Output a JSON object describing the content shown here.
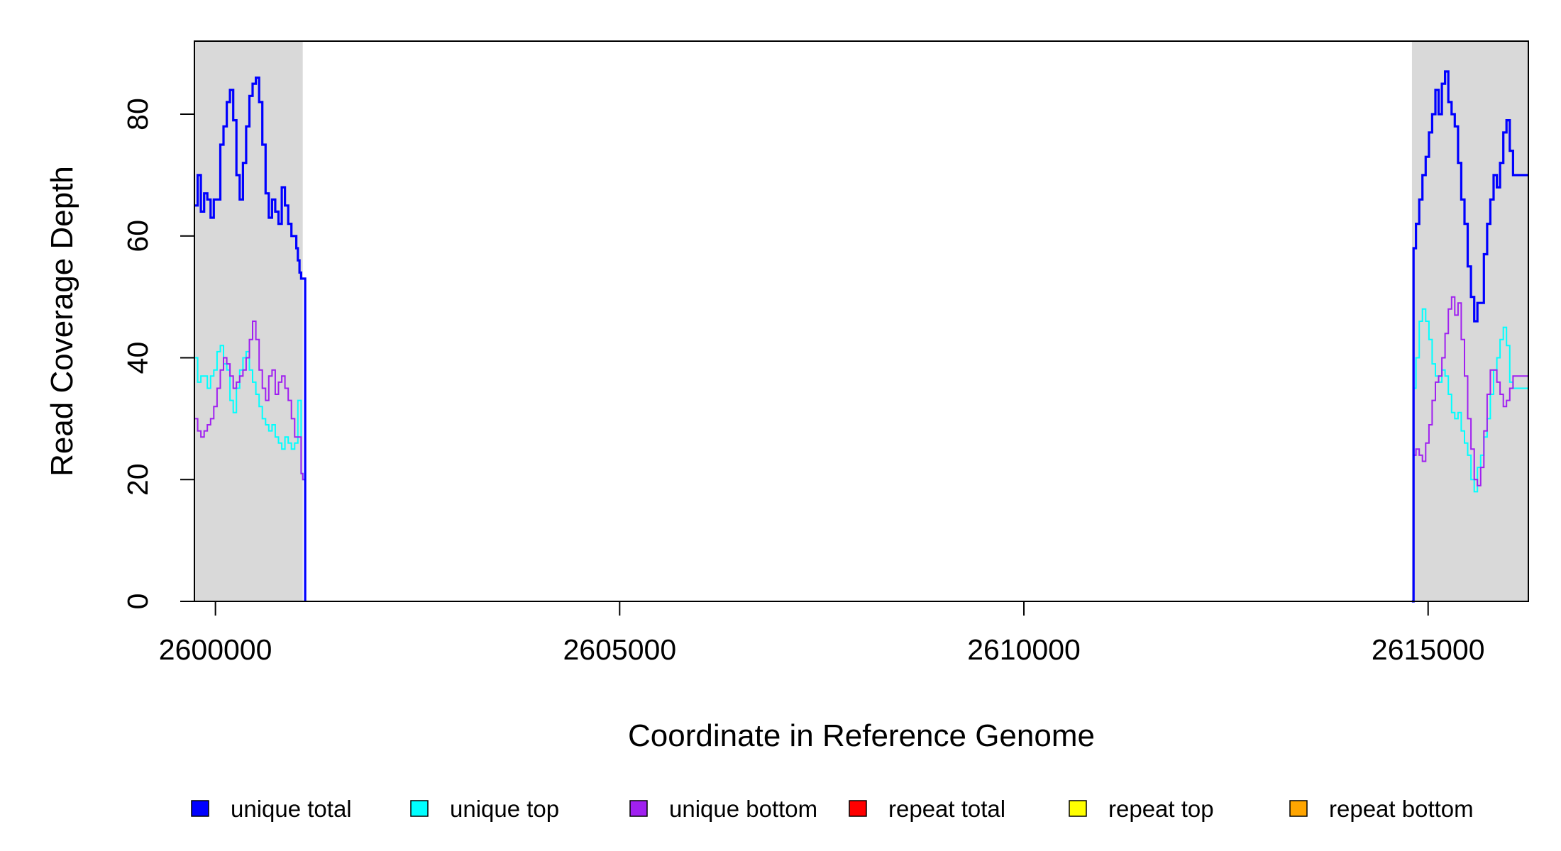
{
  "chart_data": {
    "type": "line",
    "title": "",
    "xlabel": "Coordinate in Reference Genome",
    "ylabel": "Read Coverage Depth",
    "xlim": [
      2599740,
      2616240
    ],
    "ylim": [
      0,
      92
    ],
    "x_ticks": [
      2600000,
      2605000,
      2610000,
      2615000
    ],
    "x_tick_labels": [
      "2600000",
      "2605000",
      "2610000",
      "2615000"
    ],
    "y_ticks": [
      0,
      20,
      40,
      60,
      80
    ],
    "y_tick_labels": [
      "0",
      "20",
      "40",
      "60",
      "80"
    ],
    "shaded_regions": [
      [
        2599740,
        2601080
      ],
      [
        2614800,
        2616240
      ]
    ],
    "shade_color": "#d9d9d9",
    "grid": false,
    "legend_position": "bottom",
    "series": [
      {
        "name": "unique total",
        "color": "#0000ff",
        "segments": [
          {
            "x": [
              2599740,
              2599780,
              2599820,
              2599860,
              2599900,
              2599940,
              2599980,
              2600020,
              2600060,
              2600100,
              2600140,
              2600180,
              2600220,
              2600260,
              2600300,
              2600340,
              2600380,
              2600420,
              2600460,
              2600500,
              2600540,
              2600580,
              2600620,
              2600660,
              2600700,
              2600740,
              2600780,
              2600820,
              2600860,
              2600900,
              2600940,
              2600980,
              2601000,
              2601020,
              2601040,
              2601060,
              2601080,
              2601110
            ],
            "y": [
              65,
              70,
              64,
              67,
              66,
              63,
              66,
              66,
              75,
              78,
              82,
              84,
              79,
              70,
              66,
              72,
              78,
              83,
              85,
              86,
              82,
              75,
              67,
              63,
              66,
              64,
              62,
              68,
              65,
              62,
              60,
              60,
              58,
              56,
              54,
              53,
              53,
              0
            ]
          },
          {
            "x": [
              2614800,
              2614820,
              2614850,
              2614890,
              2614930,
              2614970,
              2615010,
              2615050,
              2615090,
              2615130,
              2615170,
              2615210,
              2615250,
              2615290,
              2615330,
              2615370,
              2615410,
              2615450,
              2615490,
              2615530,
              2615570,
              2615610,
              2615650,
              2615690,
              2615730,
              2615770,
              2615810,
              2615850,
              2615890,
              2615930,
              2615970,
              2616010,
              2616050,
              2616090,
              2616130,
              2616170,
              2616210,
              2616240
            ],
            "y": [
              0,
              58,
              62,
              66,
              70,
              73,
              77,
              80,
              84,
              80,
              85,
              87,
              82,
              80,
              78,
              72,
              66,
              62,
              55,
              50,
              46,
              49,
              49,
              57,
              62,
              66,
              70,
              68,
              72,
              77,
              79,
              74,
              70,
              70,
              70,
              70,
              70,
              70
            ]
          }
        ]
      },
      {
        "name": "unique top",
        "color": "#00ffff",
        "segments": [
          {
            "x": [
              2599740,
              2599780,
              2599820,
              2599860,
              2599900,
              2599940,
              2599980,
              2600020,
              2600060,
              2600100,
              2600140,
              2600180,
              2600220,
              2600260,
              2600300,
              2600340,
              2600380,
              2600420,
              2600460,
              2600500,
              2600540,
              2600580,
              2600620,
              2600660,
              2600700,
              2600740,
              2600780,
              2600820,
              2600860,
              2600900,
              2600940,
              2600980,
              2601020,
              2601060,
              2601080,
              2601110
            ],
            "y": [
              40,
              36,
              37,
              37,
              35,
              37,
              38,
              41,
              42,
              39,
              38,
              33,
              31,
              35,
              38,
              40,
              41,
              38,
              36,
              34,
              32,
              30,
              29,
              28,
              29,
              27,
              26,
              25,
              27,
              26,
              25,
              26,
              33,
              21,
              20,
              0
            ]
          },
          {
            "x": [
              2614800,
              2614820,
              2614850,
              2614890,
              2614930,
              2614970,
              2615010,
              2615050,
              2615090,
              2615130,
              2615170,
              2615210,
              2615250,
              2615290,
              2615330,
              2615370,
              2615410,
              2615450,
              2615490,
              2615530,
              2615570,
              2615610,
              2615650,
              2615690,
              2615730,
              2615770,
              2615810,
              2615850,
              2615890,
              2615930,
              2615970,
              2616010,
              2616050,
              2616090,
              2616130,
              2616170,
              2616210,
              2616240
            ],
            "y": [
              0,
              35,
              40,
              46,
              48,
              46,
              43,
              39,
              37,
              36,
              38,
              37,
              34,
              31,
              30,
              31,
              28,
              26,
              24,
              20,
              18,
              22,
              24,
              27,
              30,
              34,
              38,
              40,
              43,
              45,
              42,
              36,
              35,
              35,
              35,
              35,
              35,
              35
            ]
          }
        ]
      },
      {
        "name": "unique bottom",
        "color": "#a020f0",
        "segments": [
          {
            "x": [
              2599740,
              2599780,
              2599820,
              2599860,
              2599900,
              2599940,
              2599980,
              2600020,
              2600060,
              2600100,
              2600140,
              2600180,
              2600220,
              2600260,
              2600300,
              2600340,
              2600380,
              2600420,
              2600460,
              2600500,
              2600540,
              2600580,
              2600620,
              2600660,
              2600700,
              2600740,
              2600780,
              2600820,
              2600860,
              2600900,
              2600940,
              2600980,
              2601020,
              2601060,
              2601080,
              2601110
            ],
            "y": [
              30,
              28,
              27,
              28,
              29,
              30,
              32,
              35,
              38,
              40,
              39,
              37,
              35,
              36,
              37,
              38,
              40,
              43,
              46,
              43,
              38,
              35,
              33,
              37,
              38,
              34,
              36,
              37,
              35,
              33,
              30,
              27,
              27,
              21,
              20,
              0
            ]
          },
          {
            "x": [
              2614800,
              2614820,
              2614850,
              2614890,
              2614930,
              2614970,
              2615010,
              2615050,
              2615090,
              2615130,
              2615170,
              2615210,
              2615250,
              2615290,
              2615330,
              2615370,
              2615410,
              2615450,
              2615490,
              2615530,
              2615570,
              2615610,
              2615650,
              2615690,
              2615730,
              2615770,
              2615810,
              2615850,
              2615890,
              2615930,
              2615970,
              2616010,
              2616050,
              2616090,
              2616130,
              2616170,
              2616210,
              2616240
            ],
            "y": [
              0,
              24,
              25,
              24,
              23,
              26,
              29,
              33,
              36,
              37,
              40,
              44,
              48,
              50,
              47,
              49,
              43,
              37,
              30,
              25,
              20,
              19,
              22,
              28,
              34,
              38,
              38,
              36,
              34,
              32,
              33,
              35,
              37,
              37,
              37,
              37,
              37,
              37
            ]
          }
        ]
      },
      {
        "name": "repeat total",
        "color": "#ff0000",
        "segments": [
          {
            "x": [
              2599740,
              2616240
            ],
            "y": [
              0,
              0
            ]
          }
        ]
      },
      {
        "name": "repeat top",
        "color": "#ffff00",
        "segments": [
          {
            "x": [
              2599740,
              2616240
            ],
            "y": [
              0,
              0
            ]
          }
        ]
      },
      {
        "name": "repeat bottom",
        "color": "#ffa500",
        "segments": [
          {
            "x": [
              2599740,
              2616240
            ],
            "y": [
              0,
              0
            ]
          }
        ]
      }
    ]
  }
}
